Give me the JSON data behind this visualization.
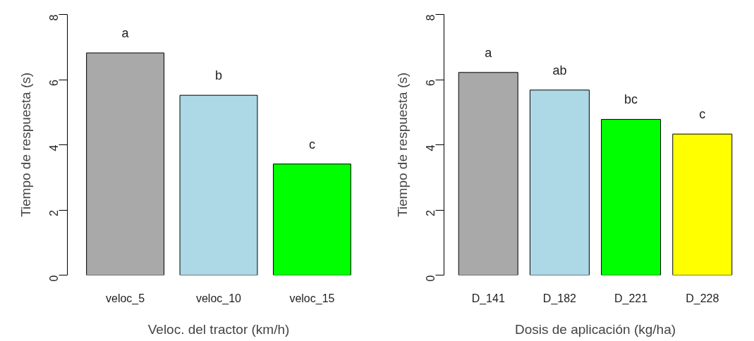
{
  "chart_data": [
    {
      "type": "bar",
      "categories": [
        "veloc_5",
        "veloc_10",
        "veloc_15"
      ],
      "values": [
        6.82,
        5.52,
        3.41
      ],
      "colors": [
        "#a9a9a9",
        "#add8e6",
        "#00ff00"
      ],
      "xlabel": "Veloc. del tractor (km/h)",
      "ylabel": "Tiempo de respuesta (s)",
      "ylim": [
        0,
        8
      ],
      "yticks": [
        0,
        2,
        4,
        6,
        8
      ],
      "grid": false,
      "legend": false,
      "annotations": [
        "a",
        "b",
        "c"
      ]
    },
    {
      "type": "bar",
      "categories": [
        "D_141",
        "D_182",
        "D_221",
        "D_228"
      ],
      "values": [
        6.22,
        5.68,
        4.78,
        4.33
      ],
      "colors": [
        "#a9a9a9",
        "#add8e6",
        "#00ff00",
        "#ffff00"
      ],
      "xlabel": "Dosis de aplicación (kg/ha)",
      "ylabel": "Tiempo de respuesta (s)",
      "ylim": [
        0,
        8
      ],
      "yticks": [
        0,
        2,
        4,
        6,
        8
      ],
      "grid": false,
      "legend": false,
      "annotations": [
        "a",
        "ab",
        "bc",
        "c"
      ]
    }
  ]
}
